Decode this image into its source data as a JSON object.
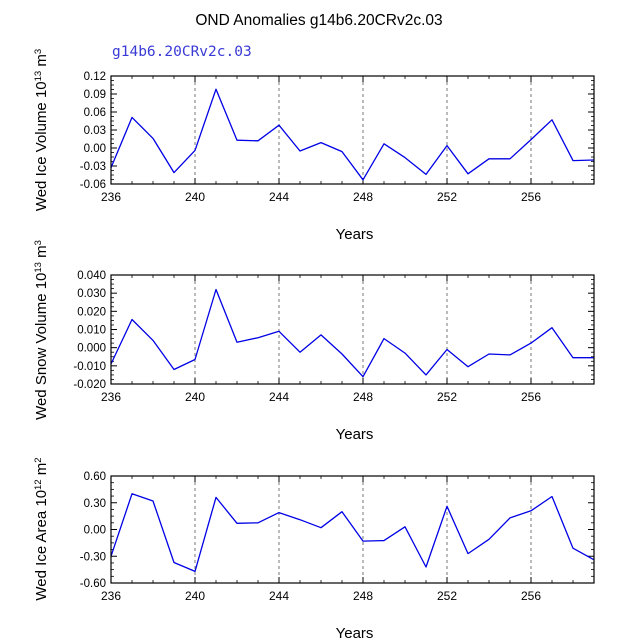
{
  "page_title": "OND Anomalies g14b6.20CRv2c.03",
  "colors": {
    "line": "#0000e6",
    "subtitle": "#3a3ad6",
    "grid": "#555555"
  },
  "chart_data": [
    {
      "type": "line",
      "subtitle": "g14b6.20CRv2c.03",
      "ylabel": "Wed Ice Volume 10",
      "ylabel_exp": "13",
      "ylabel_unit": " m",
      "ylabel_unit_exp": "3",
      "xlabel": "Years",
      "xlim": [
        236,
        259
      ],
      "ylim": [
        -0.06,
        0.12
      ],
      "yticks": [
        -0.06,
        -0.03,
        0.0,
        0.03,
        0.06,
        0.09,
        0.12
      ],
      "ytick_labels": [
        "-0.06",
        "-0.03",
        "0.00",
        "0.03",
        "0.06",
        "0.09",
        "0.12"
      ],
      "xticks": [
        236,
        240,
        244,
        248,
        252,
        256
      ],
      "xtick_labels": [
        "236",
        "240",
        "244",
        "248",
        "252",
        "256"
      ],
      "vgrid": [
        240,
        244,
        248,
        252,
        256
      ],
      "x": [
        236,
        237,
        238,
        239,
        240,
        241,
        242,
        243,
        244,
        245,
        246,
        247,
        248,
        249,
        250,
        251,
        252,
        253,
        254,
        255,
        256,
        257,
        258,
        259
      ],
      "y": [
        -0.033,
        0.051,
        0.016,
        -0.041,
        -0.004,
        0.098,
        0.013,
        0.012,
        0.038,
        -0.005,
        0.009,
        -0.006,
        -0.053,
        0.007,
        -0.016,
        -0.044,
        0.004,
        -0.043,
        -0.018,
        -0.018,
        0.014,
        0.047,
        -0.021,
        -0.02
      ]
    },
    {
      "type": "line",
      "subtitle": "",
      "ylabel": "Wed Snow Volume 10",
      "ylabel_exp": "13",
      "ylabel_unit": " m",
      "ylabel_unit_exp": "3",
      "xlabel": "Years",
      "xlim": [
        236,
        259
      ],
      "ylim": [
        -0.02,
        0.04
      ],
      "yticks": [
        -0.02,
        -0.01,
        0.0,
        0.01,
        0.02,
        0.03,
        0.04
      ],
      "ytick_labels": [
        "-0.020",
        "-0.010",
        "0.000",
        "0.010",
        "0.020",
        "0.030",
        "0.040"
      ],
      "xticks": [
        236,
        240,
        244,
        248,
        252,
        256
      ],
      "xtick_labels": [
        "236",
        "240",
        "244",
        "248",
        "252",
        "256"
      ],
      "vgrid": [
        240,
        244,
        248,
        252,
        256
      ],
      "x": [
        236,
        237,
        238,
        239,
        240,
        241,
        242,
        243,
        244,
        245,
        246,
        247,
        248,
        249,
        250,
        251,
        252,
        253,
        254,
        255,
        256,
        257,
        258,
        259
      ],
      "y": [
        -0.009,
        0.0155,
        0.004,
        -0.012,
        -0.0065,
        0.032,
        0.003,
        0.0055,
        0.009,
        -0.0025,
        0.007,
        -0.0035,
        -0.016,
        0.005,
        -0.003,
        -0.015,
        -0.001,
        -0.0105,
        -0.0035,
        -0.004,
        0.0025,
        0.011,
        -0.0055,
        -0.0055
      ]
    },
    {
      "type": "line",
      "subtitle": "",
      "ylabel": "Wed Ice Area 10",
      "ylabel_exp": "12",
      "ylabel_unit": " m",
      "ylabel_unit_exp": "2",
      "xlabel": "Years",
      "xlim": [
        236,
        259
      ],
      "ylim": [
        -0.6,
        0.6
      ],
      "yticks": [
        -0.6,
        -0.3,
        0.0,
        0.3,
        0.6
      ],
      "ytick_labels": [
        "-0.60",
        "-0.30",
        "0.00",
        "0.30",
        "0.60"
      ],
      "xticks": [
        236,
        240,
        244,
        248,
        252,
        256
      ],
      "xtick_labels": [
        "236",
        "240",
        "244",
        "248",
        "252",
        "256"
      ],
      "vgrid": [
        240,
        244,
        248,
        252,
        256
      ],
      "x": [
        236,
        237,
        238,
        239,
        240,
        241,
        242,
        243,
        244,
        245,
        246,
        247,
        248,
        249,
        250,
        251,
        252,
        253,
        254,
        255,
        256,
        257,
        258,
        259
      ],
      "y": [
        -0.3,
        0.4,
        0.32,
        -0.37,
        -0.47,
        0.36,
        0.07,
        0.075,
        0.19,
        0.11,
        0.02,
        0.2,
        -0.13,
        -0.125,
        0.03,
        -0.42,
        0.26,
        -0.27,
        -0.11,
        0.13,
        0.21,
        0.37,
        -0.21,
        -0.34
      ]
    }
  ]
}
